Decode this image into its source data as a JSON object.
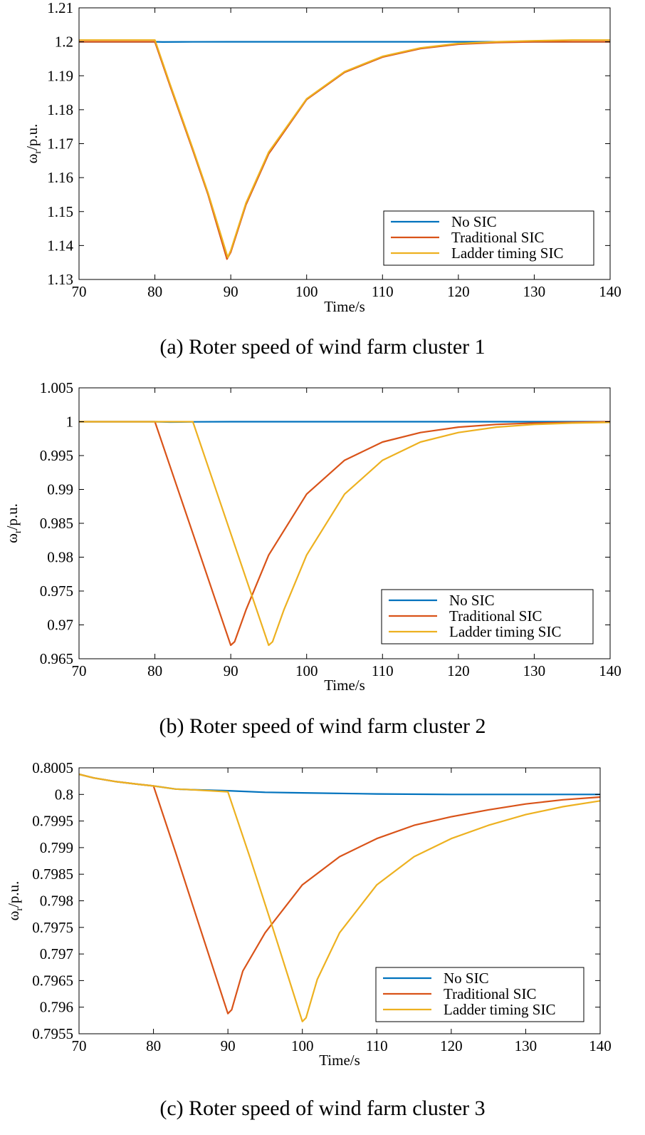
{
  "colors": {
    "series": [
      "#0072BD",
      "#D95319",
      "#EDB120"
    ]
  },
  "chart_data": [
    {
      "type": "line",
      "caption": "(a) Roter speed of wind farm cluster 1",
      "xlabel": "Time/s",
      "ylabel_main": "ω",
      "ylabel_sub": "r",
      "ylabel_unit": "/p.u.",
      "xlim": [
        70,
        140
      ],
      "ylim": [
        1.13,
        1.21
      ],
      "xticks": [
        70,
        80,
        90,
        100,
        110,
        120,
        130,
        140
      ],
      "xtick_labels": [
        "70",
        "80",
        "90",
        "100",
        "110",
        "120",
        "130",
        "140"
      ],
      "yticks": [
        1.13,
        1.14,
        1.15,
        1.16,
        1.17,
        1.18,
        1.19,
        1.2,
        1.21
      ],
      "ytick_labels": [
        "1.13",
        "1.14",
        "1.15",
        "1.16",
        "1.17",
        "1.18",
        "1.19",
        "1.2",
        "1.21"
      ],
      "grid": false,
      "legend_position": "bottom-right",
      "series": [
        {
          "name": "No SIC",
          "x": [
            70,
            80,
            81,
            85,
            90,
            100,
            110,
            120,
            130,
            140
          ],
          "y": [
            1.2,
            1.2,
            1.19995,
            1.19998,
            1.2,
            1.2,
            1.2,
            1.2,
            1.2,
            1.2
          ]
        },
        {
          "name": "Traditional SIC",
          "x": [
            70,
            80,
            82,
            85,
            87,
            89.5,
            90,
            92,
            95,
            100,
            105,
            110,
            115,
            120,
            125,
            130,
            135,
            140
          ],
          "y": [
            1.2,
            1.2,
            1.187,
            1.168,
            1.155,
            1.136,
            1.138,
            1.152,
            1.167,
            1.183,
            1.191,
            1.1955,
            1.198,
            1.1993,
            1.1998,
            1.2,
            1.2,
            1.2
          ]
        },
        {
          "name": "Ladder timing SIC",
          "x": [
            70,
            80,
            82,
            85,
            87,
            89.6,
            90,
            92,
            95,
            100,
            105,
            110,
            115,
            120,
            125,
            130,
            135,
            140
          ],
          "y": [
            1.2005,
            1.2005,
            1.1875,
            1.1685,
            1.1555,
            1.1365,
            1.1385,
            1.1525,
            1.1675,
            1.1832,
            1.1912,
            1.1957,
            1.1982,
            1.1995,
            1.2,
            1.2003,
            1.2005,
            1.2005
          ]
        }
      ]
    },
    {
      "type": "line",
      "caption": "(b) Roter speed of wind farm cluster 2",
      "xlabel": "Time/s",
      "ylabel_main": "ω",
      "ylabel_sub": "r",
      "ylabel_unit": "/p.u.",
      "xlim": [
        70,
        140
      ],
      "ylim": [
        0.965,
        1.005
      ],
      "xticks": [
        70,
        80,
        90,
        100,
        110,
        120,
        130,
        140
      ],
      "xtick_labels": [
        "70",
        "80",
        "90",
        "100",
        "110",
        "120",
        "130",
        "140"
      ],
      "yticks": [
        0.965,
        0.97,
        0.975,
        0.98,
        0.985,
        0.99,
        0.995,
        1,
        1.005
      ],
      "ytick_labels": [
        "0.965",
        "0.97",
        "0.975",
        "0.98",
        "0.985",
        "0.99",
        "0.995",
        "1",
        "1.005"
      ],
      "grid": false,
      "legend_position": "bottom-right",
      "series": [
        {
          "name": "No SIC",
          "x": [
            70,
            80,
            82,
            85,
            90,
            100,
            110,
            120,
            130,
            140
          ],
          "y": [
            1.0,
            1.0,
            0.99995,
            0.99998,
            1.0,
            1.0,
            1.0,
            1.0,
            1.0,
            1.0
          ]
        },
        {
          "name": "Traditional SIC",
          "x": [
            70,
            80,
            82,
            85,
            88,
            90,
            90.5,
            92,
            95,
            100,
            105,
            110,
            115,
            120,
            125,
            130,
            135,
            140
          ],
          "y": [
            1.0,
            1.0,
            0.9934,
            0.9835,
            0.9736,
            0.967,
            0.9675,
            0.9722,
            0.9803,
            0.9893,
            0.9943,
            0.997,
            0.9984,
            0.9992,
            0.9996,
            0.9998,
            0.9999,
            1.0
          ]
        },
        {
          "name": "Ladder timing SIC",
          "x": [
            70,
            80,
            85,
            87,
            90,
            93,
            95,
            95.5,
            97,
            100,
            105,
            110,
            115,
            120,
            125,
            130,
            135,
            140
          ],
          "y": [
            1.0,
            1.0,
            1.0,
            0.9934,
            0.9835,
            0.9736,
            0.967,
            0.9675,
            0.9722,
            0.9803,
            0.9893,
            0.9943,
            0.997,
            0.9984,
            0.9992,
            0.9996,
            0.9998,
            0.9999
          ]
        }
      ]
    },
    {
      "type": "line",
      "caption": "(c) Roter speed of wind farm cluster 3",
      "xlabel": "Time/s",
      "ylabel_main": "ω",
      "ylabel_sub": "r",
      "ylabel_unit": "/p.u.",
      "xlim": [
        70,
        140
      ],
      "ylim": [
        0.7955,
        0.8005
      ],
      "xticks": [
        70,
        80,
        90,
        100,
        110,
        120,
        130,
        140
      ],
      "xtick_labels": [
        "70",
        "80",
        "90",
        "100",
        "110",
        "120",
        "130",
        "140"
      ],
      "yticks": [
        0.7955,
        0.796,
        0.7965,
        0.797,
        0.7975,
        0.798,
        0.7985,
        0.799,
        0.7995,
        0.8,
        0.8005
      ],
      "ytick_labels": [
        "0.7955",
        "0.796",
        "0.7965",
        "0.797",
        "0.7975",
        "0.798",
        "0.7985",
        "0.799",
        "0.7995",
        "0.8",
        "0.8005"
      ],
      "grid": false,
      "legend_position": "bottom-right",
      "series": [
        {
          "name": "No SIC",
          "x": [
            70,
            72,
            75,
            78,
            80,
            83,
            85,
            90,
            95,
            100,
            110,
            120,
            130,
            140
          ],
          "y": [
            0.80038,
            0.80031,
            0.80024,
            0.80019,
            0.80016,
            0.8001,
            0.80009,
            0.80007,
            0.80004,
            0.80003,
            0.80001,
            0.8,
            0.8,
            0.8
          ]
        },
        {
          "name": "Traditional SIC",
          "x": [
            70,
            72,
            75,
            78,
            80,
            83,
            86,
            90,
            90.5,
            92,
            95,
            100,
            105,
            110,
            115,
            120,
            125,
            130,
            135,
            140
          ],
          "y": [
            0.80038,
            0.80031,
            0.80024,
            0.80019,
            0.80016,
            0.7989,
            0.7976,
            0.79588,
            0.79595,
            0.79668,
            0.7974,
            0.7983,
            0.79883,
            0.79917,
            0.79942,
            0.79958,
            0.79971,
            0.79982,
            0.7999,
            0.79995
          ]
        },
        {
          "name": "Ladder timing SIC",
          "x": [
            70,
            72,
            75,
            78,
            80,
            83,
            85,
            90,
            93,
            96,
            100,
            100.5,
            102,
            105,
            110,
            115,
            120,
            125,
            130,
            135,
            140
          ],
          "y": [
            0.80038,
            0.80031,
            0.80024,
            0.80019,
            0.80016,
            0.8001,
            0.80009,
            0.80005,
            0.7988,
            0.7975,
            0.79573,
            0.7958,
            0.79652,
            0.7974,
            0.7983,
            0.79883,
            0.79917,
            0.79942,
            0.79962,
            0.79977,
            0.79988
          ]
        }
      ]
    }
  ]
}
